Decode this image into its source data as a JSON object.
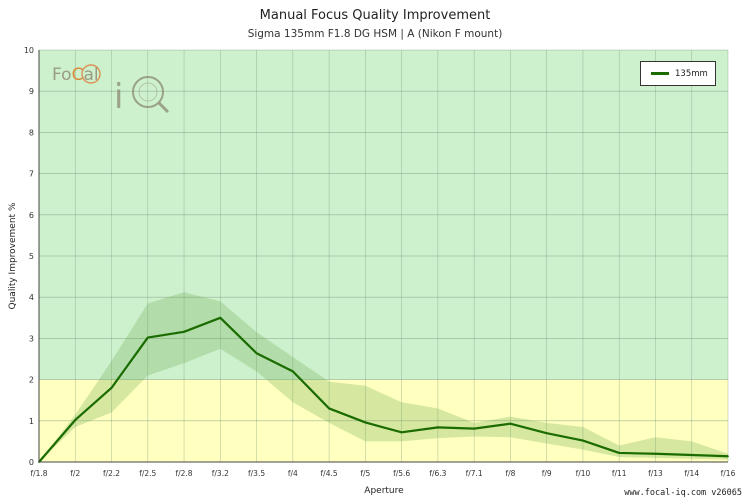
{
  "chart_data": {
    "type": "line",
    "title": "Manual Focus Quality Improvement",
    "subtitle": "Sigma 135mm F1.8 DG HSM | A (Nikon F mount)",
    "xlabel": "Aperture",
    "ylabel": "Quality Improvement %",
    "categories": [
      "f/1.8",
      "f/2",
      "f/2.2",
      "f/2.5",
      "f/2.8",
      "f/3.2",
      "f/3.5",
      "f/4",
      "f/4.5",
      "f/5",
      "f/5.6",
      "f/6.3",
      "f/7.1",
      "f/8",
      "f/9",
      "f/10",
      "f/11",
      "f/13",
      "f/14",
      "f/16"
    ],
    "ylim": [
      0,
      10
    ],
    "yticks": [
      0,
      1,
      2,
      3,
      4,
      5,
      6,
      7,
      8,
      9,
      10
    ],
    "bands": [
      {
        "from": 2,
        "to": 10,
        "color": "#cdf0cd"
      },
      {
        "from": 0,
        "to": 2,
        "color": "#ffffc0"
      }
    ],
    "series": [
      {
        "name": "135mm",
        "color": "#1a6b00",
        "values": [
          0,
          1.02,
          1.8,
          3.02,
          3.16,
          3.5,
          2.64,
          2.2,
          1.3,
          0.96,
          0.72,
          0.84,
          0.81,
          0.93,
          0.7,
          0.52,
          0.22,
          0.2,
          0.17,
          0.14
        ],
        "upper": [
          0,
          1.15,
          2.45,
          3.85,
          4.12,
          3.9,
          3.15,
          2.55,
          1.95,
          1.85,
          1.45,
          1.3,
          0.95,
          1.1,
          0.95,
          0.85,
          0.4,
          0.6,
          0.5,
          0.2
        ],
        "lower": [
          0,
          0.85,
          1.2,
          2.1,
          2.4,
          2.75,
          2.2,
          1.45,
          0.95,
          0.5,
          0.5,
          0.58,
          0.62,
          0.6,
          0.45,
          0.3,
          0.12,
          0.1,
          0.08,
          0.06
        ]
      }
    ],
    "grid": true,
    "legend_position": "top-right"
  },
  "logo": {
    "text_a": "Fo",
    "text_b": "C",
    "text_c": "al",
    "text_d": "iQ"
  },
  "footer": "www.focal-iq.com  v26065"
}
